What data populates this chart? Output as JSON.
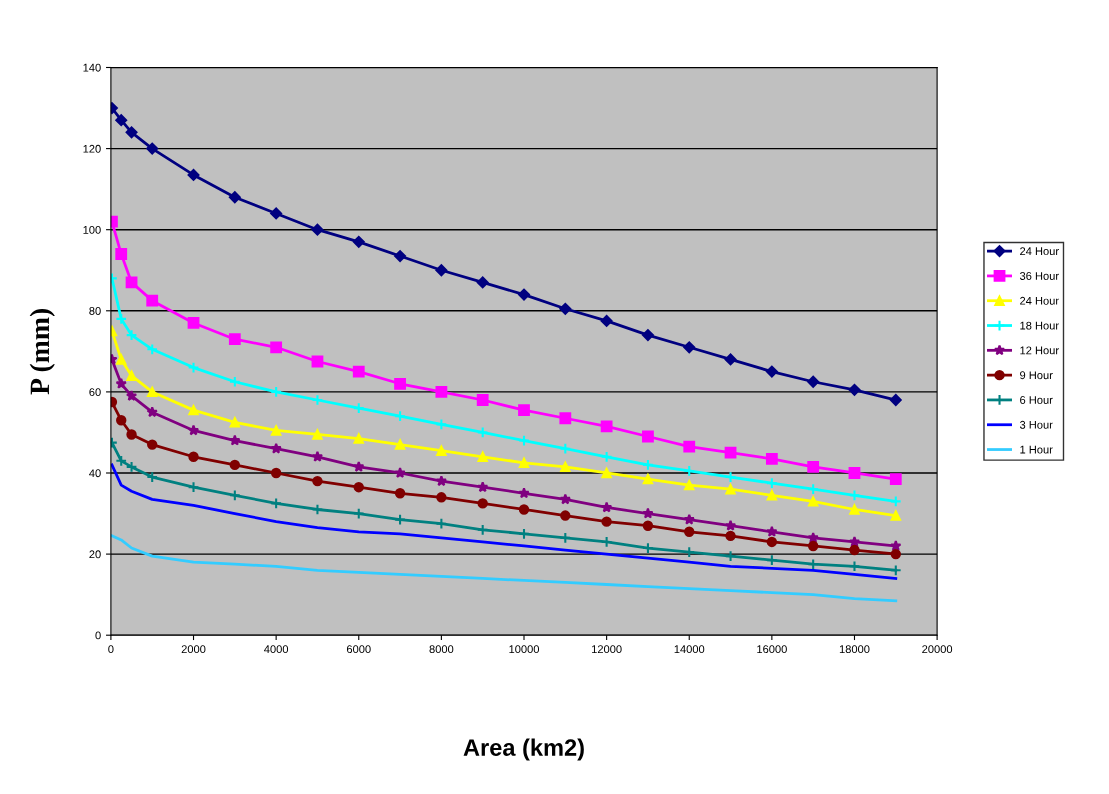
{
  "chart_data": {
    "type": "line",
    "xlabel": "Area (km2)",
    "ylabel": "P (mm)",
    "x": [
      25,
      250,
      500,
      1000,
      2000,
      3000,
      4000,
      5000,
      6000,
      7000,
      8000,
      9000,
      10000,
      11000,
      12000,
      13000,
      14000,
      15000,
      16000,
      17000,
      18000,
      19000
    ],
    "xlim": [
      0,
      20000
    ],
    "xticks": [
      0,
      2000,
      4000,
      6000,
      8000,
      10000,
      12000,
      14000,
      16000,
      18000,
      20000
    ],
    "ylim": [
      0,
      140
    ],
    "yticks": [
      0,
      20,
      40,
      60,
      80,
      100,
      120,
      140
    ],
    "grid": "y",
    "legend": "right",
    "series": [
      {
        "name": "24 Hour",
        "color": "#000080",
        "marker": "diamond",
        "values": [
          130,
          127,
          124,
          120,
          113.5,
          108,
          104,
          100,
          97,
          93.5,
          90,
          87,
          84,
          80.5,
          77.5,
          74,
          71,
          68,
          65,
          62.5,
          60.5,
          58
        ]
      },
      {
        "name": "36 Hour",
        "color": "#ff00ff",
        "marker": "square",
        "values": [
          102,
          94,
          87,
          82.5,
          77,
          73,
          71,
          67.5,
          65,
          62,
          60,
          58,
          55.5,
          53.5,
          51.5,
          49,
          46.5,
          45,
          43.5,
          41.5,
          40,
          38.5
        ]
      },
      {
        "name": "24 Hour",
        "color": "#ffff00",
        "marker": "triangle",
        "values": [
          75,
          68,
          64,
          60,
          55.5,
          52.5,
          50.5,
          49.5,
          48.5,
          47,
          45.5,
          44,
          42.5,
          41.5,
          40,
          38.5,
          37,
          36,
          34.5,
          33,
          31,
          29.5
        ]
      },
      {
        "name": "18 Hour",
        "color": "#00ffff",
        "marker": "cross",
        "values": [
          88,
          78,
          74,
          70.5,
          66,
          62.5,
          60,
          58,
          56,
          54,
          52,
          50,
          48,
          46,
          44,
          42,
          40.5,
          39,
          37.5,
          36,
          34.5,
          33
        ]
      },
      {
        "name": "12 Hour",
        "color": "#800080",
        "marker": "star",
        "values": [
          68,
          62,
          59,
          55,
          50.5,
          48,
          46,
          44,
          41.5,
          40,
          38,
          36.5,
          35,
          33.5,
          31.5,
          30,
          28.5,
          27,
          25.5,
          24,
          23,
          22
        ]
      },
      {
        "name": "9 Hour",
        "color": "#800000",
        "marker": "circle",
        "values": [
          57.5,
          53,
          49.5,
          47,
          44,
          42,
          40,
          38,
          36.5,
          35,
          34,
          32.5,
          31,
          29.5,
          28,
          27,
          25.5,
          24.5,
          23,
          22,
          21,
          20
        ]
      },
      {
        "name": "6 Hour",
        "color": "#008080",
        "marker": "cross",
        "values": [
          47.5,
          43,
          41.5,
          39,
          36.5,
          34.5,
          32.5,
          31,
          30,
          28.5,
          27.5,
          26,
          25,
          24,
          23,
          21.5,
          20.5,
          19.5,
          18.5,
          17.5,
          17,
          16
        ]
      },
      {
        "name": "3 Hour",
        "color": "#0000ff",
        "marker": "none",
        "values": [
          42,
          37,
          35.5,
          33.5,
          32,
          30,
          28,
          26.5,
          25.5,
          25,
          24,
          23,
          22,
          21,
          20,
          19,
          18,
          17,
          16.5,
          16,
          15,
          14
        ]
      },
      {
        "name": "1 Hour",
        "color": "#33ccff",
        "marker": "none",
        "values": [
          24.5,
          23.5,
          21.5,
          19.5,
          18,
          17.5,
          17,
          16,
          15.5,
          15,
          14.5,
          14,
          13.5,
          13,
          12.5,
          12,
          11.5,
          11,
          10.5,
          10,
          9,
          8.5
        ]
      }
    ]
  }
}
